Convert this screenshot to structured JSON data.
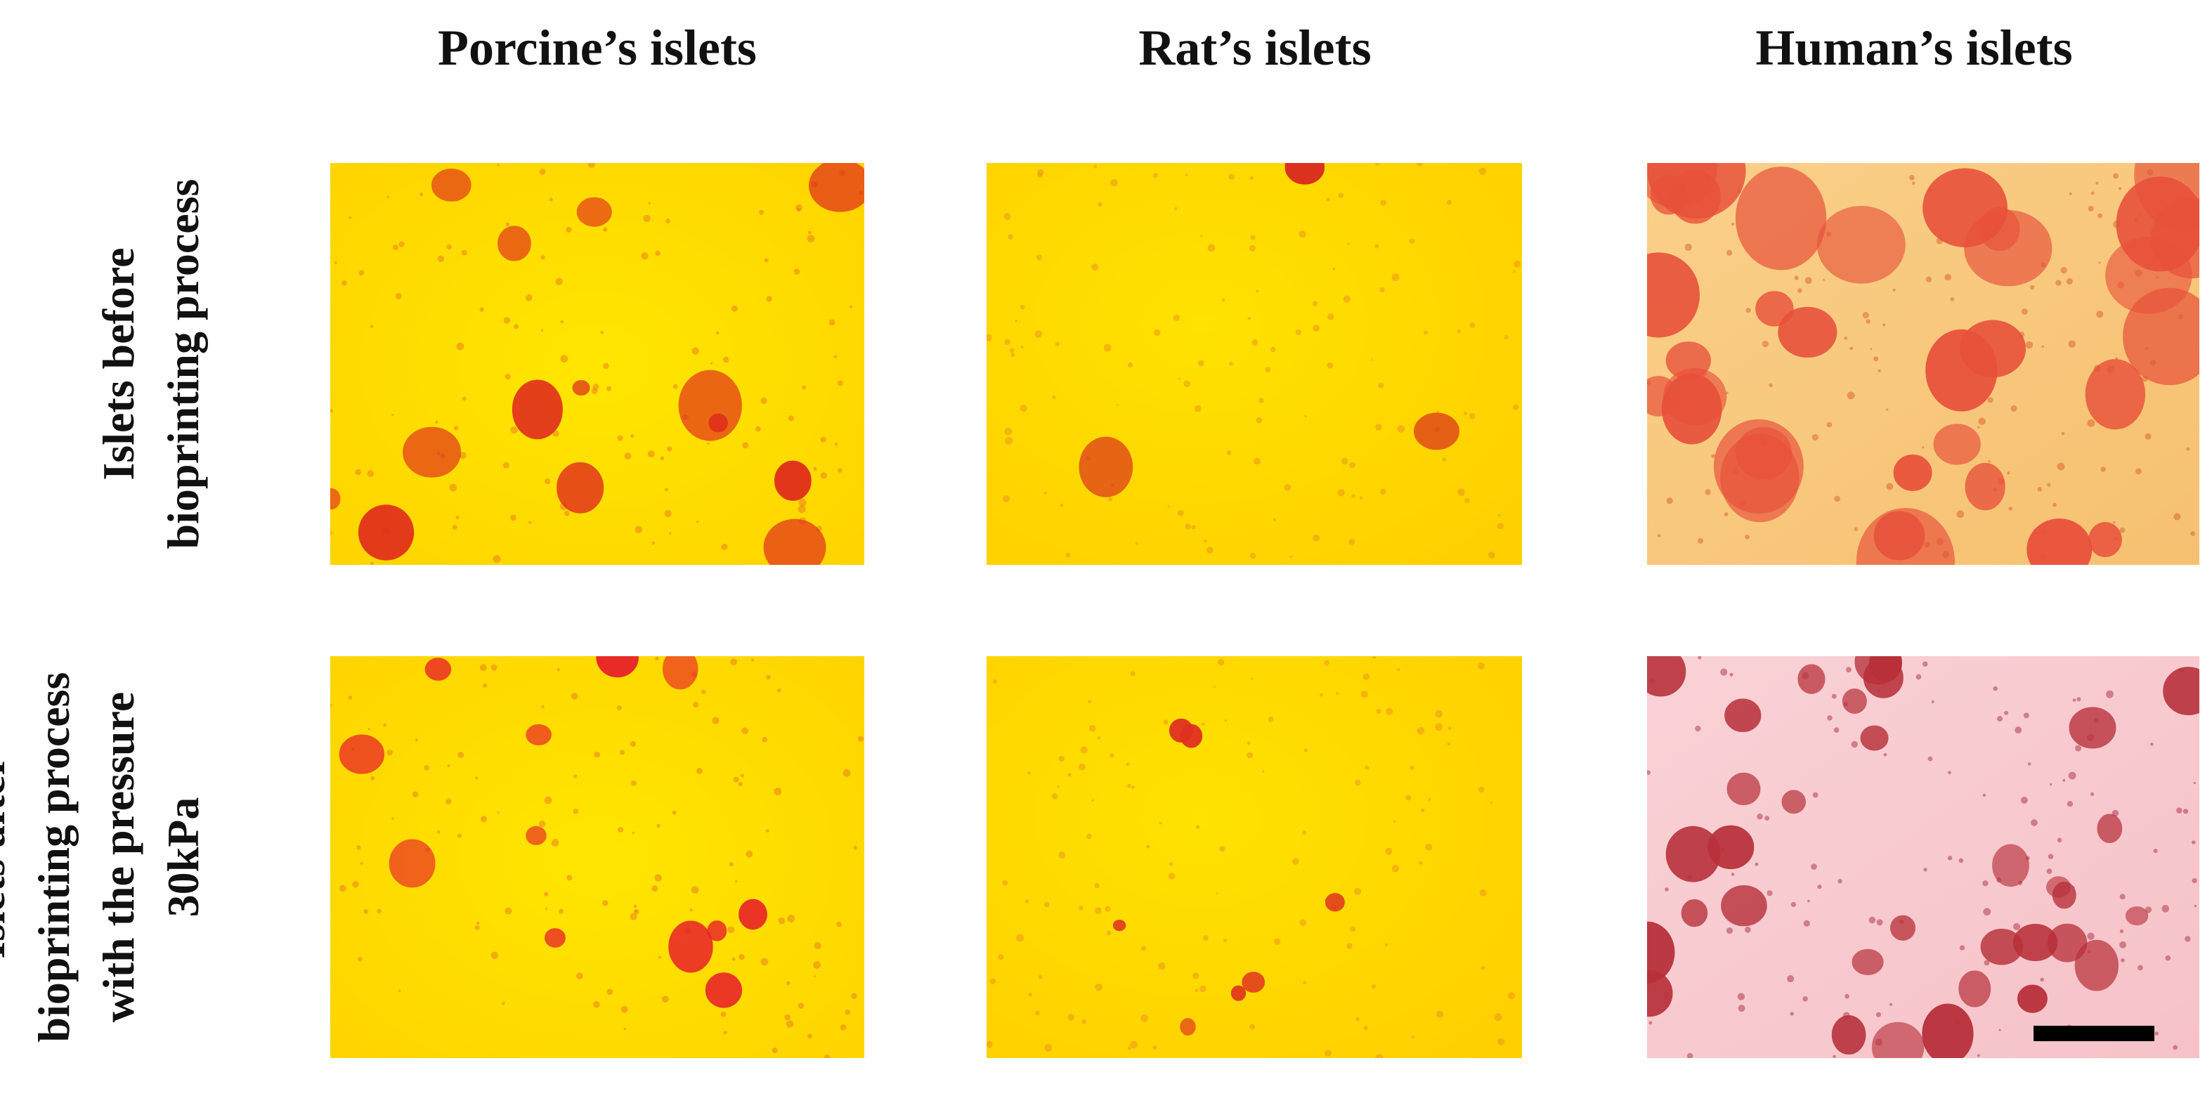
{
  "columns": [
    "Porcine’s islets",
    "Rat’s islets",
    "Human’s islets"
  ],
  "rows": [
    {
      "label_lines": [
        "Islets before",
        "bioprinting process"
      ]
    },
    {
      "label_lines": [
        "Islets after",
        "bioprinting process",
        "with the pressure",
        "30kPa"
      ]
    }
  ]
}
